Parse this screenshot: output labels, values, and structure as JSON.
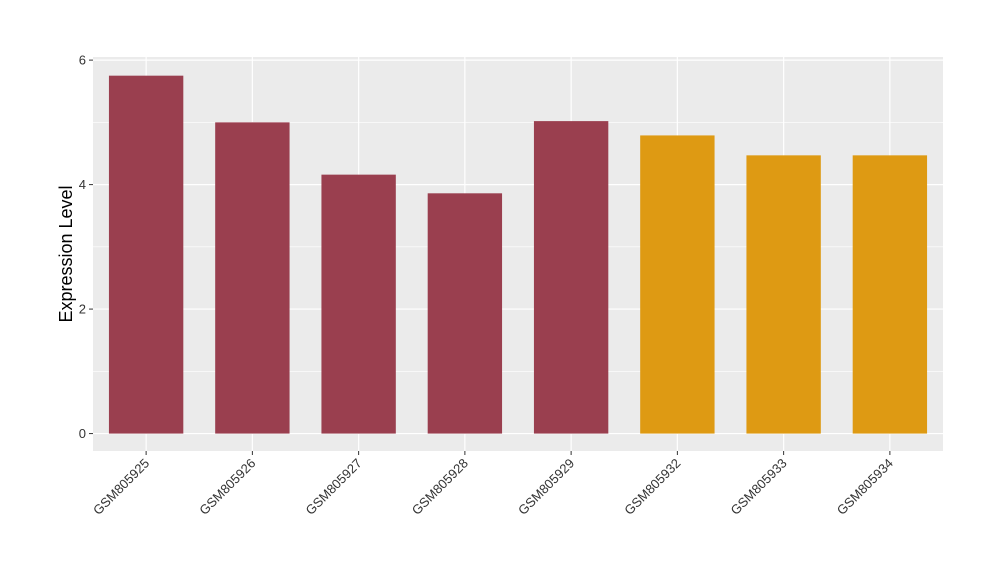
{
  "chart_data": {
    "type": "bar",
    "title": "",
    "xlabel": "",
    "ylabel": "Expression Level",
    "categories": [
      "GSM805925",
      "GSM805926",
      "GSM805927",
      "GSM805928",
      "GSM805929",
      "GSM805932",
      "GSM805933",
      "GSM805934"
    ],
    "values": [
      5.75,
      5.0,
      4.16,
      3.86,
      5.02,
      4.79,
      4.47,
      4.47
    ],
    "bar_colors": [
      "#9A3F4F",
      "#9A3F4F",
      "#9A3F4F",
      "#9A3F4F",
      "#9A3F4F",
      "#DE9A13",
      "#DE9A13",
      "#DE9A13"
    ],
    "yticks": [
      0,
      2,
      4,
      6
    ],
    "ylim": [
      -0.28,
      6.05
    ],
    "grid": true,
    "panel_background": "#EBEBEB",
    "grid_color": "#FFFFFF"
  }
}
